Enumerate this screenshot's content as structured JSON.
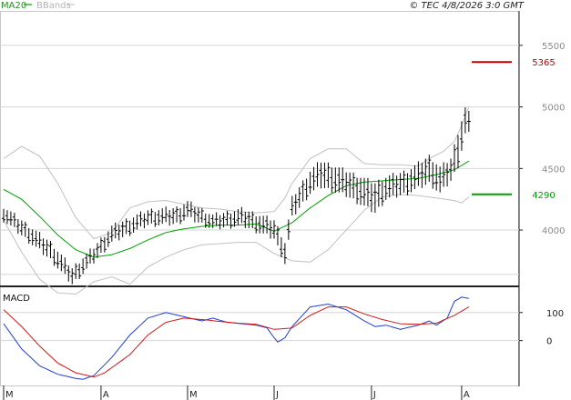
{
  "header": {
    "legend_ma": "MA20",
    "legend_bb": "BBands",
    "timestamp": "© TEC 4/8/2026 3:0 GMT"
  },
  "macd_panel": {
    "title": "MACD"
  },
  "colors": {
    "price_bar": "#000000",
    "ma20": "#00a000",
    "bbands": "#c0c0c0",
    "macd": "#1f3fd0",
    "signal": "#d01818",
    "resistance": "#c00000",
    "support": "#00a000"
  },
  "chart_data": [
    {
      "type": "bar",
      "subtype": "ohlc",
      "y_axis": {
        "ticks": [
          "5500",
          "5000",
          "4500",
          "4000"
        ],
        "ylim": [
          3550,
          5780
        ]
      },
      "x_axis": {
        "ticks": [
          "M",
          "A",
          "M",
          "J",
          "J",
          "A"
        ],
        "tick_index": [
          0,
          27,
          51,
          75,
          102,
          127
        ]
      },
      "levels": [
        {
          "value": 5365,
          "label": "5365",
          "color": "#c00000"
        },
        {
          "value": 4290,
          "label": "4290",
          "color": "#00a000"
        }
      ],
      "ohlc_keys": [
        [
          0,
          4190,
          4080
        ],
        [
          13,
          3900,
          3760
        ],
        [
          19,
          3690,
          3560
        ],
        [
          25,
          3860,
          3740
        ],
        [
          30,
          4030,
          3900
        ],
        [
          40,
          4160,
          4040
        ],
        [
          48,
          4180,
          4050
        ],
        [
          51,
          4230,
          4100
        ],
        [
          58,
          4120,
          4010
        ],
        [
          66,
          4170,
          4040
        ],
        [
          75,
          4080,
          3930
        ],
        [
          78,
          3900,
          3730
        ],
        [
          80,
          4260,
          4100
        ],
        [
          85,
          4480,
          4300
        ],
        [
          88,
          4560,
          4350
        ],
        [
          95,
          4480,
          4280
        ],
        [
          103,
          4380,
          4140
        ],
        [
          106,
          4430,
          4250
        ],
        [
          112,
          4480,
          4300
        ],
        [
          118,
          4600,
          4380
        ],
        [
          121,
          4510,
          4300
        ],
        [
          124,
          4580,
          4400
        ],
        [
          126,
          4790,
          4520
        ],
        [
          128,
          4990,
          4780
        ],
        [
          129,
          4950,
          4780
        ]
      ],
      "ma20_keys": [
        [
          0,
          4330
        ],
        [
          5,
          4250
        ],
        [
          10,
          4110
        ],
        [
          15,
          3960
        ],
        [
          20,
          3840
        ],
        [
          25,
          3780
        ],
        [
          30,
          3800
        ],
        [
          35,
          3850
        ],
        [
          40,
          3920
        ],
        [
          45,
          3980
        ],
        [
          50,
          4010
        ],
        [
          55,
          4030
        ],
        [
          60,
          4040
        ],
        [
          65,
          4040
        ],
        [
          70,
          4050
        ],
        [
          75,
          3990
        ],
        [
          80,
          4060
        ],
        [
          85,
          4180
        ],
        [
          90,
          4280
        ],
        [
          95,
          4360
        ],
        [
          100,
          4390
        ],
        [
          105,
          4400
        ],
        [
          110,
          4410
        ],
        [
          115,
          4420
        ],
        [
          120,
          4450
        ],
        [
          125,
          4490
        ],
        [
          129,
          4560
        ]
      ],
      "bb_upper_keys": [
        [
          0,
          4580
        ],
        [
          5,
          4680
        ],
        [
          10,
          4600
        ],
        [
          15,
          4380
        ],
        [
          20,
          4100
        ],
        [
          25,
          3930
        ],
        [
          30,
          3980
        ],
        [
          35,
          4180
        ],
        [
          40,
          4230
        ],
        [
          45,
          4240
        ],
        [
          50,
          4210
        ],
        [
          55,
          4180
        ],
        [
          60,
          4170
        ],
        [
          65,
          4150
        ],
        [
          70,
          4140
        ],
        [
          75,
          4150
        ],
        [
          78,
          4260
        ],
        [
          80,
          4380
        ],
        [
          85,
          4580
        ],
        [
          90,
          4660
        ],
        [
          95,
          4660
        ],
        [
          100,
          4540
        ],
        [
          105,
          4530
        ],
        [
          110,
          4530
        ],
        [
          115,
          4520
        ],
        [
          118,
          4580
        ],
        [
          122,
          4640
        ],
        [
          125,
          4720
        ],
        [
          127,
          4850
        ],
        [
          129,
          5000
        ]
      ],
      "bb_lower_keys": [
        [
          0,
          4080
        ],
        [
          5,
          3820
        ],
        [
          10,
          3600
        ],
        [
          15,
          3490
        ],
        [
          20,
          3480
        ],
        [
          25,
          3580
        ],
        [
          30,
          3620
        ],
        [
          35,
          3560
        ],
        [
          40,
          3700
        ],
        [
          45,
          3780
        ],
        [
          50,
          3840
        ],
        [
          55,
          3880
        ],
        [
          60,
          3890
        ],
        [
          65,
          3900
        ],
        [
          70,
          3900
        ],
        [
          75,
          3810
        ],
        [
          80,
          3750
        ],
        [
          85,
          3740
        ],
        [
          90,
          3840
        ],
        [
          95,
          4000
        ],
        [
          100,
          4160
        ],
        [
          105,
          4270
        ],
        [
          110,
          4290
        ],
        [
          115,
          4280
        ],
        [
          120,
          4260
        ],
        [
          125,
          4240
        ],
        [
          127,
          4220
        ],
        [
          129,
          4270
        ]
      ]
    },
    {
      "type": "line",
      "title": "MACD",
      "y_axis": {
        "ticks": [
          "100",
          "0"
        ],
        "ylim": [
          -160,
          190
        ]
      },
      "series": [
        {
          "color": "#1f3fd0",
          "keys": [
            [
              0,
              60
            ],
            [
              5,
              -30
            ],
            [
              10,
              -90
            ],
            [
              15,
              -120
            ],
            [
              20,
              -135
            ],
            [
              22,
              -138
            ],
            [
              25,
              -125
            ],
            [
              30,
              -60
            ],
            [
              35,
              20
            ],
            [
              40,
              80
            ],
            [
              45,
              100
            ],
            [
              50,
              85
            ],
            [
              55,
              70
            ],
            [
              58,
              80
            ],
            [
              62,
              65
            ],
            [
              66,
              60
            ],
            [
              70,
              55
            ],
            [
              73,
              45
            ],
            [
              75,
              10
            ],
            [
              76,
              -5
            ],
            [
              78,
              10
            ],
            [
              80,
              50
            ],
            [
              85,
              120
            ],
            [
              90,
              130
            ],
            [
              95,
              110
            ],
            [
              100,
              70
            ],
            [
              103,
              50
            ],
            [
              106,
              55
            ],
            [
              110,
              40
            ],
            [
              115,
              55
            ],
            [
              118,
              70
            ],
            [
              120,
              55
            ],
            [
              123,
              80
            ],
            [
              125,
              140
            ],
            [
              127,
              155
            ],
            [
              129,
              150
            ]
          ]
        },
        {
          "color": "#d01818",
          "keys": [
            [
              0,
              110
            ],
            [
              5,
              50
            ],
            [
              10,
              -20
            ],
            [
              15,
              -80
            ],
            [
              20,
              -115
            ],
            [
              25,
              -130
            ],
            [
              28,
              -115
            ],
            [
              35,
              -50
            ],
            [
              40,
              20
            ],
            [
              45,
              65
            ],
            [
              50,
              80
            ],
            [
              55,
              75
            ],
            [
              60,
              68
            ],
            [
              65,
              62
            ],
            [
              70,
              58
            ],
            [
              75,
              40
            ],
            [
              80,
              45
            ],
            [
              85,
              90
            ],
            [
              90,
              120
            ],
            [
              95,
              120
            ],
            [
              100,
              95
            ],
            [
              105,
              75
            ],
            [
              110,
              60
            ],
            [
              115,
              58
            ],
            [
              120,
              62
            ],
            [
              125,
              90
            ],
            [
              129,
              120
            ]
          ]
        }
      ]
    }
  ]
}
